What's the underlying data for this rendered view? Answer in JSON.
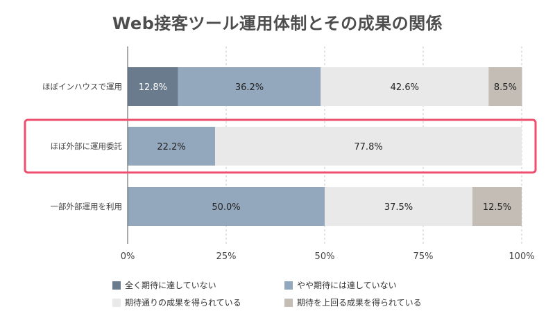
{
  "chart_data": {
    "type": "bar",
    "orientation": "horizontal-stacked",
    "title": "Web接客ツール運用体制とその成果の関係",
    "categories": [
      "ほぼインハウスで運用",
      "ほぼ外部に運用委託",
      "一部外部運用を利用"
    ],
    "series": [
      {
        "name": "全く期待に達していない",
        "color": "#6a7b8d",
        "values": [
          12.8,
          0,
          0
        ],
        "labels": [
          "12.8%",
          "",
          ""
        ]
      },
      {
        "name": "やや期待には達していない",
        "color": "#93a8bc",
        "values": [
          36.2,
          22.2,
          50.0
        ],
        "labels": [
          "36.2%",
          "22.2%",
          "50.0%"
        ]
      },
      {
        "name": "期待通りの成果を得られている",
        "color": "#e9e9e9",
        "values": [
          42.6,
          77.8,
          37.5
        ],
        "labels": [
          "42.6%",
          "77.8%",
          "37.5%"
        ]
      },
      {
        "name": "期待を上回る成果を得られている",
        "color": "#c4bdb6",
        "values": [
          8.5,
          0,
          12.5
        ],
        "labels": [
          "8.5%",
          "",
          "12.5%"
        ]
      }
    ],
    "xlim": [
      0,
      100
    ],
    "xticks": [
      0,
      25,
      50,
      75,
      100
    ],
    "xtick_labels": [
      "0%",
      "25%",
      "50%",
      "75%",
      "100%"
    ],
    "grid": true,
    "legend_position": "bottom",
    "highlight": {
      "category": "ほぼ外部に運用委託",
      "color": "#ee4f6e"
    }
  }
}
